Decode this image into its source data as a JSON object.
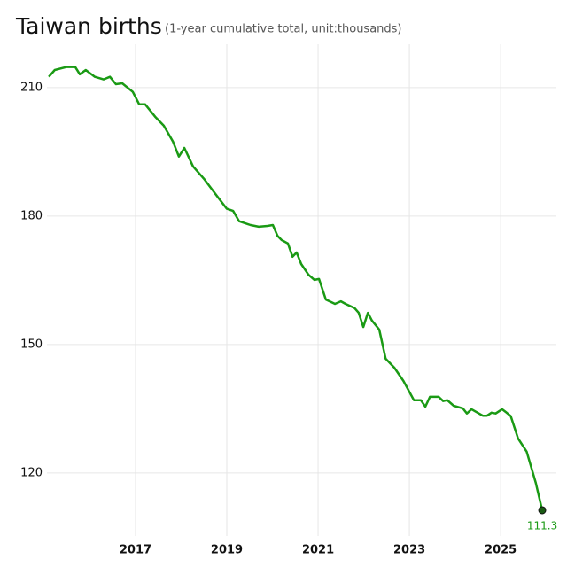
{
  "chart_data": {
    "type": "line",
    "title": "Taiwan births",
    "subtitle": "(1-year cumulative total, unit:thousands)",
    "x": [
      2015.1,
      2015.23,
      2015.49,
      2015.68,
      2015.78,
      2015.91,
      2016.11,
      2016.3,
      2016.44,
      2016.57,
      2016.71,
      2016.94,
      2017.08,
      2017.21,
      2017.43,
      2017.62,
      2017.82,
      2017.95,
      2018.07,
      2018.26,
      2018.5,
      2018.79,
      2019.0,
      2019.14,
      2019.27,
      2019.52,
      2019.7,
      2019.89,
      2020.01,
      2020.11,
      2020.2,
      2020.34,
      2020.44,
      2020.53,
      2020.63,
      2020.79,
      2020.92,
      2021.02,
      2021.17,
      2021.37,
      2021.5,
      2021.6,
      2021.8,
      2021.89,
      2021.99,
      2022.09,
      2022.18,
      2022.34,
      2022.48,
      2022.67,
      2022.87,
      2023.1,
      2023.25,
      2023.35,
      2023.45,
      2023.64,
      2023.74,
      2023.83,
      2023.97,
      2024.17,
      2024.26,
      2024.36,
      2024.61,
      2024.7,
      2024.8,
      2024.89,
      2025.03,
      2025.13,
      2025.22,
      2025.38,
      2025.57,
      2025.77,
      2025.91
    ],
    "series": [
      {
        "name": "Births",
        "color": "#1a9a14",
        "values": [
          212.5,
          214.1,
          214.8,
          214.8,
          213.1,
          214.1,
          212.5,
          211.9,
          212.5,
          210.8,
          211.0,
          209.0,
          206.1,
          206.1,
          203.2,
          201.1,
          197.4,
          193.9,
          195.9,
          191.6,
          188.7,
          184.6,
          181.7,
          181.2,
          178.8,
          177.9,
          177.5,
          177.7,
          177.9,
          175.4,
          174.4,
          173.6,
          170.5,
          171.5,
          168.8,
          166.3,
          165.1,
          165.3,
          160.5,
          159.5,
          160.1,
          159.5,
          158.5,
          157.4,
          154.1,
          157.4,
          155.6,
          153.5,
          146.7,
          144.6,
          141.5,
          137.0,
          137.0,
          135.5,
          137.8,
          137.8,
          136.8,
          137.0,
          135.7,
          135.1,
          133.9,
          134.9,
          133.4,
          133.4,
          134.1,
          133.9,
          134.9,
          134.1,
          133.3,
          128.1,
          125.0,
          117.7,
          111.3
        ]
      }
    ],
    "end_label": "111.3",
    "xlim": [
      2015.06,
      2026.22
    ],
    "xticks": [
      2017,
      2019,
      2021,
      2023,
      2025
    ],
    "ylim": [
      105.3,
      220.1
    ],
    "yticks": [
      120,
      150,
      180,
      210
    ],
    "grid": true
  }
}
